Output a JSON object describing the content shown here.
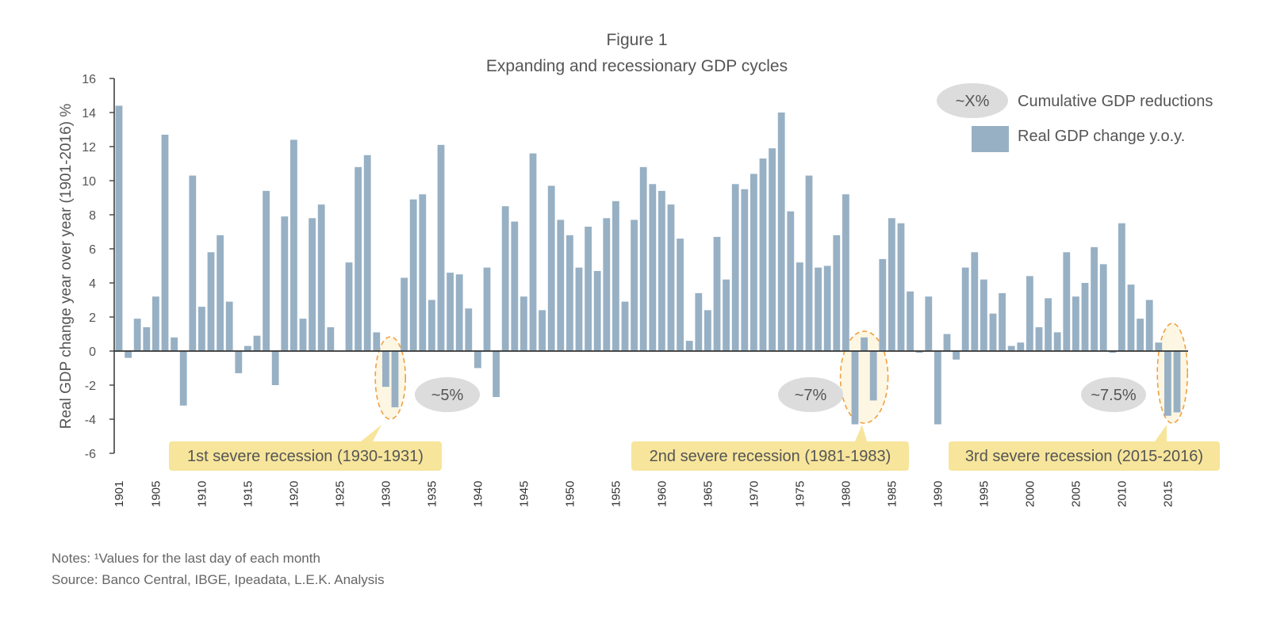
{
  "chart_data": {
    "type": "bar",
    "title": "Figure 1",
    "subtitle": "Expanding and recessionary GDP cycles",
    "ylabel": "Real GDP change year over year (1901-2016) %",
    "xlabel": "",
    "ylim": [
      -6,
      16
    ],
    "yticks": [
      16,
      14,
      12,
      10,
      8,
      6,
      4,
      2,
      0,
      -2,
      -4,
      -6
    ],
    "xtick_labels": [
      "1901",
      "1905",
      "1910",
      "1915",
      "1920",
      "1925",
      "1930",
      "1935",
      "1940",
      "1945",
      "1950",
      "1955",
      "1960",
      "1965",
      "1970",
      "1975",
      "1980",
      "1985",
      "1990",
      "1995",
      "2000",
      "2005",
      "2010",
      "2015"
    ],
    "legend": {
      "position": "top-right",
      "cumulative_label": "Cumulative GDP reductions",
      "cumulative_symbol": "~X%",
      "series_label": "Real GDP change y.o.y."
    },
    "colors": {
      "bar": "#97b0c4",
      "axis": "#333333",
      "pill": "#dcdcdc",
      "callout": "#f7e59b",
      "highlight_border": "#f0a040",
      "highlight_fill": "#fdf6e3",
      "text": "#555555"
    },
    "x": [
      1901,
      1902,
      1903,
      1904,
      1905,
      1906,
      1907,
      1908,
      1909,
      1910,
      1911,
      1912,
      1913,
      1914,
      1915,
      1916,
      1917,
      1918,
      1919,
      1920,
      1921,
      1922,
      1923,
      1924,
      1925,
      1926,
      1927,
      1928,
      1929,
      1930,
      1931,
      1932,
      1933,
      1934,
      1935,
      1936,
      1937,
      1938,
      1939,
      1940,
      1941,
      1942,
      1943,
      1944,
      1945,
      1946,
      1947,
      1948,
      1949,
      1950,
      1951,
      1952,
      1953,
      1954,
      1955,
      1956,
      1957,
      1958,
      1959,
      1960,
      1961,
      1962,
      1963,
      1964,
      1965,
      1966,
      1967,
      1968,
      1969,
      1970,
      1971,
      1972,
      1973,
      1974,
      1975,
      1976,
      1977,
      1978,
      1979,
      1980,
      1981,
      1982,
      1983,
      1984,
      1985,
      1986,
      1987,
      1988,
      1989,
      1990,
      1991,
      1992,
      1993,
      1994,
      1995,
      1996,
      1997,
      1998,
      1999,
      2000,
      2001,
      2002,
      2003,
      2004,
      2005,
      2006,
      2007,
      2008,
      2009,
      2010,
      2011,
      2012,
      2013,
      2014,
      2015,
      2016
    ],
    "series": [
      {
        "name": "Real GDP change y.o.y.",
        "values": [
          14.4,
          -0.4,
          1.9,
          1.4,
          3.2,
          12.7,
          0.8,
          -3.2,
          10.3,
          2.6,
          5.8,
          6.8,
          2.9,
          -1.3,
          0.3,
          0.9,
          9.4,
          -2.0,
          7.9,
          12.4,
          1.9,
          7.8,
          8.6,
          1.4,
          0.0,
          5.2,
          10.8,
          11.5,
          1.1,
          -2.1,
          -3.3,
          4.3,
          8.9,
          9.2,
          3.0,
          12.1,
          4.6,
          4.5,
          2.5,
          -1.0,
          4.9,
          -2.7,
          8.5,
          7.6,
          3.2,
          11.6,
          2.4,
          9.7,
          7.7,
          6.8,
          4.9,
          7.3,
          4.7,
          7.8,
          8.8,
          2.9,
          7.7,
          10.8,
          9.8,
          9.4,
          8.6,
          6.6,
          0.6,
          3.4,
          2.4,
          6.7,
          4.2,
          9.8,
          9.5,
          10.4,
          11.3,
          11.9,
          14.0,
          8.2,
          5.2,
          10.3,
          4.9,
          5.0,
          6.8,
          9.2,
          -4.3,
          0.8,
          -2.9,
          5.4,
          7.8,
          7.5,
          3.5,
          -0.1,
          3.2,
          -4.3,
          1.0,
          -0.5,
          4.9,
          5.8,
          4.2,
          2.2,
          3.4,
          0.3,
          0.5,
          4.4,
          1.4,
          3.1,
          1.1,
          5.8,
          3.2,
          4.0,
          6.1,
          5.1,
          -0.1,
          7.5,
          3.9,
          1.9,
          3.0,
          0.5,
          -3.8,
          -3.6
        ]
      }
    ],
    "recession_highlights": [
      {
        "years": [
          1930,
          1931
        ],
        "reduction": "~5%",
        "label": "1st severe recession (1930-1931)"
      },
      {
        "years": [
          1981,
          1983
        ],
        "reduction": "~7%",
        "label": "2nd severe recession (1981-1983)"
      },
      {
        "years": [
          2015,
          2016
        ],
        "reduction": "~7.5%",
        "label": "3rd severe recession (2015-2016)"
      }
    ]
  },
  "notes": {
    "line1": "Notes: ¹Values for the last day of each month",
    "line2": "Source: Banco Central, IBGE, Ipeadata, L.E.K. Analysis"
  }
}
